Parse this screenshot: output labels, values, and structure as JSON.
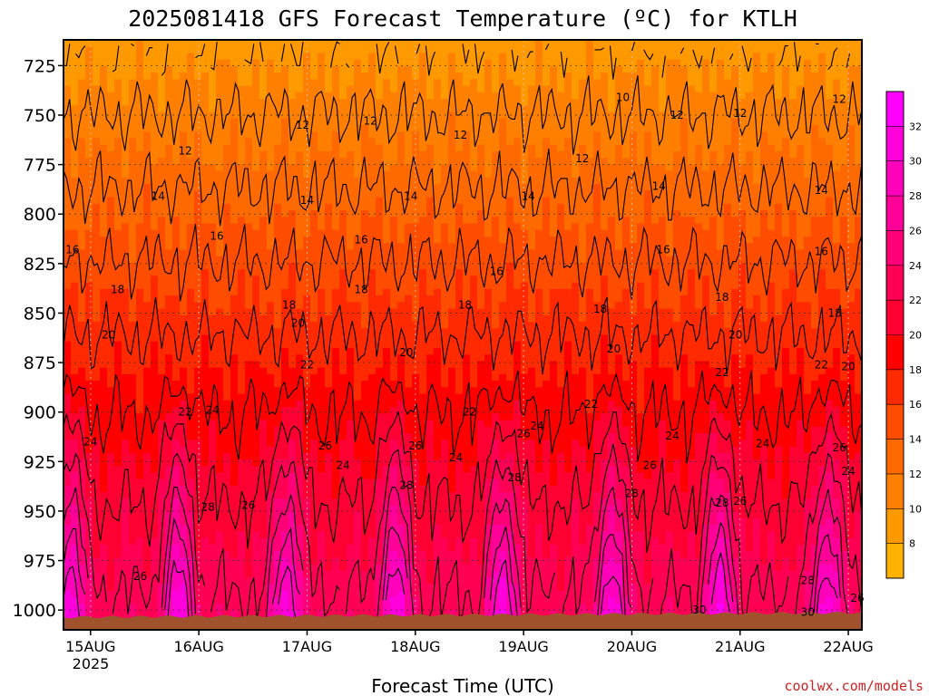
{
  "chart_data": {
    "type": "heatmap",
    "title": "2025081418 GFS Forecast Temperature (ºC) for KTLH",
    "xlabel": "Forecast Time (UTC)",
    "ylabel": "",
    "x_ticks": [
      "15AUG",
      "16AUG",
      "17AUG",
      "18AUG",
      "19AUG",
      "20AUG",
      "21AUG",
      "22AUG"
    ],
    "x_year_label": "2025",
    "x_range": [
      "2025-08-14T18:00Z",
      "2025-08-22T03:00Z"
    ],
    "y_axis": "pressure (hPa), inverted",
    "y_ticks": [
      725,
      750,
      775,
      800,
      825,
      850,
      875,
      900,
      925,
      950,
      975,
      1000
    ],
    "y_range": [
      1010,
      712
    ],
    "grid": true,
    "colorbar": {
      "ticks": [
        8,
        10,
        12,
        14,
        16,
        18,
        20,
        22,
        24,
        26,
        28,
        30,
        32
      ],
      "levels": [
        7,
        9,
        11,
        13,
        15,
        17,
        19,
        21,
        23,
        25,
        27,
        29,
        31,
        33
      ],
      "colors": [
        "#ffb300",
        "#ff9900",
        "#ff8000",
        "#ff6a00",
        "#ff4d00",
        "#ff2a00",
        "#ff0000",
        "#ff0033",
        "#ff0055",
        "#ff0077",
        "#ff0099",
        "#ff00bb",
        "#ff00dd",
        "#ff00ff"
      ]
    },
    "contour_levels": [
      10,
      12,
      14,
      16,
      18,
      20,
      22,
      24,
      26,
      28,
      30
    ],
    "contour_labels": [
      {
        "text": "10",
        "x": "2025-08-19T22:00Z",
        "p": 741
      },
      {
        "text": "12",
        "x": "2025-08-15T21:00Z",
        "p": 768
      },
      {
        "text": "12",
        "x": "2025-08-16T23:00Z",
        "p": 755
      },
      {
        "text": "12",
        "x": "2025-08-17T14:00Z",
        "p": 753
      },
      {
        "text": "12",
        "x": "2025-08-18T10:00Z",
        "p": 760
      },
      {
        "text": "12",
        "x": "2025-08-19T13:00Z",
        "p": 772
      },
      {
        "text": "12",
        "x": "2025-08-20T10:00Z",
        "p": 750
      },
      {
        "text": "12",
        "x": "2025-08-21T00:00Z",
        "p": 749
      },
      {
        "text": "12",
        "x": "2025-08-21T22:00Z",
        "p": 742
      },
      {
        "text": "14",
        "x": "2025-08-15T15:00Z",
        "p": 791
      },
      {
        "text": "14",
        "x": "2025-08-17T00:00Z",
        "p": 793
      },
      {
        "text": "14",
        "x": "2025-08-17T23:00Z",
        "p": 791
      },
      {
        "text": "14",
        "x": "2025-08-19T01:00Z",
        "p": 791
      },
      {
        "text": "14",
        "x": "2025-08-20T06:00Z",
        "p": 786
      },
      {
        "text": "14",
        "x": "2025-08-21T18:00Z",
        "p": 788
      },
      {
        "text": "16",
        "x": "2025-08-14T20:00Z",
        "p": 818
      },
      {
        "text": "16",
        "x": "2025-08-16T04:00Z",
        "p": 811
      },
      {
        "text": "16",
        "x": "2025-08-17T12:00Z",
        "p": 813
      },
      {
        "text": "16",
        "x": "2025-08-18T18:00Z",
        "p": 829
      },
      {
        "text": "16",
        "x": "2025-08-20T07:00Z",
        "p": 818
      },
      {
        "text": "16",
        "x": "2025-08-21T18:00Z",
        "p": 819
      },
      {
        "text": "18",
        "x": "2025-08-15T06:00Z",
        "p": 838
      },
      {
        "text": "18",
        "x": "2025-08-16T20:00Z",
        "p": 846
      },
      {
        "text": "18",
        "x": "2025-08-17T12:00Z",
        "p": 838
      },
      {
        "text": "18",
        "x": "2025-08-18T11:00Z",
        "p": 846
      },
      {
        "text": "18",
        "x": "2025-08-19T17:00Z",
        "p": 848
      },
      {
        "text": "18",
        "x": "2025-08-20T20:00Z",
        "p": 842
      },
      {
        "text": "18",
        "x": "2025-08-21T21:00Z",
        "p": 850
      },
      {
        "text": "20",
        "x": "2025-08-15T04:00Z",
        "p": 861
      },
      {
        "text": "20",
        "x": "2025-08-16T22:00Z",
        "p": 855
      },
      {
        "text": "20",
        "x": "2025-08-17T22:00Z",
        "p": 870
      },
      {
        "text": "20",
        "x": "2025-08-19T20:00Z",
        "p": 868
      },
      {
        "text": "20",
        "x": "2025-08-20T23:00Z",
        "p": 861
      },
      {
        "text": "20",
        "x": "2025-08-22T00:00Z",
        "p": 877
      },
      {
        "text": "22",
        "x": "2025-08-17T00:00Z",
        "p": 876
      },
      {
        "text": "22",
        "x": "2025-08-15T21:00Z",
        "p": 900
      },
      {
        "text": "22",
        "x": "2025-08-18T12:00Z",
        "p": 900
      },
      {
        "text": "22",
        "x": "2025-08-19T15:00Z",
        "p": 896
      },
      {
        "text": "22",
        "x": "2025-08-20T20:00Z",
        "p": 880
      },
      {
        "text": "22",
        "x": "2025-08-21T18:00Z",
        "p": 876
      },
      {
        "text": "24",
        "x": "2025-08-15T00:00Z",
        "p": 915
      },
      {
        "text": "24",
        "x": "2025-08-16T03:00Z",
        "p": 899
      },
      {
        "text": "24",
        "x": "2025-08-17T08:00Z",
        "p": 927
      },
      {
        "text": "24",
        "x": "2025-08-18T09:00Z",
        "p": 923
      },
      {
        "text": "24",
        "x": "2025-08-19T03:00Z",
        "p": 907
      },
      {
        "text": "24",
        "x": "2025-08-20T09:00Z",
        "p": 912
      },
      {
        "text": "24",
        "x": "2025-08-21T05:00Z",
        "p": 916
      },
      {
        "text": "24",
        "x": "2025-08-22T00:00Z",
        "p": 930
      },
      {
        "text": "26",
        "x": "2025-08-17T04:00Z",
        "p": 917
      },
      {
        "text": "26",
        "x": "2025-08-16T11:00Z",
        "p": 947
      },
      {
        "text": "26",
        "x": "2025-08-18T00:00Z",
        "p": 917
      },
      {
        "text": "26",
        "x": "2025-08-19T00:00Z",
        "p": 911
      },
      {
        "text": "26",
        "x": "2025-08-20T04:00Z",
        "p": 927
      },
      {
        "text": "26",
        "x": "2025-08-21T00:00Z",
        "p": 945
      },
      {
        "text": "26",
        "x": "2025-08-21T22:00Z",
        "p": 918
      },
      {
        "text": "26",
        "x": "2025-08-15T11:00Z",
        "p": 983
      },
      {
        "text": "26",
        "x": "2025-08-22T02:00Z",
        "p": 994
      },
      {
        "text": "28",
        "x": "2025-08-16T02:00Z",
        "p": 948
      },
      {
        "text": "28",
        "x": "2025-08-17T22:00Z",
        "p": 937
      },
      {
        "text": "28",
        "x": "2025-08-18T22:00Z",
        "p": 933
      },
      {
        "text": "28",
        "x": "2025-08-19T24:00Z",
        "p": 941
      },
      {
        "text": "28",
        "x": "2025-08-20T20:00Z",
        "p": 946
      },
      {
        "text": "28",
        "x": "2025-08-21T15:00Z",
        "p": 985
      },
      {
        "text": "30",
        "x": "2025-08-20T15:00Z",
        "p": 1000
      },
      {
        "text": "30",
        "x": "2025-08-21T15:00Z",
        "p": 1001
      }
    ]
  },
  "credit": "coolwx.com/models"
}
